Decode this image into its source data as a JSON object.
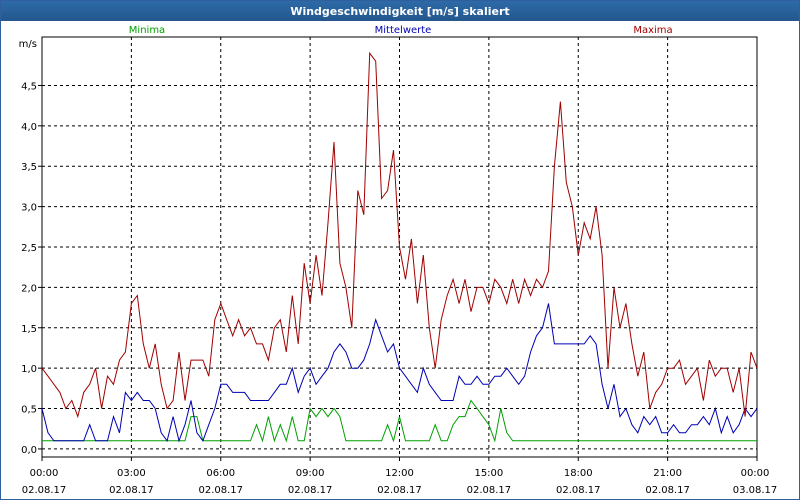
{
  "window": {
    "title": "Windgeschwindigkeit [m/s] skaliert"
  },
  "chart_data": {
    "type": "line",
    "title": "Windgeschwindigkeit [m/s] skaliert",
    "ylabel": "m/s",
    "ylim": [
      -0.1,
      5.1
    ],
    "xlim": [
      0,
      24
    ],
    "grid": true,
    "legend_placement": "top",
    "yticks": [
      "0,0",
      "0,5",
      "1,0",
      "1,5",
      "2,0",
      "2,5",
      "3,0",
      "3,5",
      "4,0",
      "4,5"
    ],
    "xticks": [
      {
        "time": "00:00",
        "date": "02.08.17"
      },
      {
        "time": "03:00",
        "date": "02.08.17"
      },
      {
        "time": "06:00",
        "date": "02.08.17"
      },
      {
        "time": "09:00",
        "date": "02.08.17"
      },
      {
        "time": "12:00",
        "date": "02.08.17"
      },
      {
        "time": "15:00",
        "date": "02.08.17"
      },
      {
        "time": "18:00",
        "date": "02.08.17"
      },
      {
        "time": "21:00",
        "date": "02.08.17"
      },
      {
        "time": "00:00",
        "date": "03.08.17"
      }
    ],
    "x": [
      0,
      0.2,
      0.4,
      0.6,
      0.8,
      1.0,
      1.2,
      1.4,
      1.6,
      1.8,
      2.0,
      2.2,
      2.4,
      2.6,
      2.8,
      3.0,
      3.2,
      3.4,
      3.6,
      3.8,
      4.0,
      4.2,
      4.4,
      4.6,
      4.8,
      5.0,
      5.2,
      5.4,
      5.6,
      5.8,
      6.0,
      6.2,
      6.4,
      6.6,
      6.8,
      7.0,
      7.2,
      7.4,
      7.6,
      7.8,
      8.0,
      8.2,
      8.4,
      8.6,
      8.8,
      9.0,
      9.2,
      9.4,
      9.6,
      9.8,
      10.0,
      10.2,
      10.4,
      10.6,
      10.8,
      11.0,
      11.2,
      11.4,
      11.6,
      11.8,
      12.0,
      12.2,
      12.4,
      12.6,
      12.8,
      13.0,
      13.2,
      13.4,
      13.6,
      13.8,
      14.0,
      14.2,
      14.4,
      14.6,
      14.8,
      15.0,
      15.2,
      15.4,
      15.6,
      15.8,
      16.0,
      16.2,
      16.4,
      16.6,
      16.8,
      17.0,
      17.2,
      17.4,
      17.6,
      17.8,
      18.0,
      18.2,
      18.4,
      18.6,
      18.8,
      19.0,
      19.2,
      19.4,
      19.6,
      19.8,
      20.0,
      20.2,
      20.4,
      20.6,
      20.8,
      21.0,
      21.2,
      21.4,
      21.6,
      21.8,
      22.0,
      22.2,
      22.4,
      22.6,
      22.8,
      23.0,
      23.2,
      23.4,
      23.6,
      23.8,
      24.0
    ],
    "series": [
      {
        "name": "Minima",
        "color": "#00a000",
        "values": [
          0.1,
          0.1,
          0.1,
          0.1,
          0.1,
          0.1,
          0.1,
          0.1,
          0.1,
          0.1,
          0.1,
          0.1,
          0.1,
          0.1,
          0.1,
          0.1,
          0.1,
          0.1,
          0.1,
          0.1,
          0.1,
          0.1,
          0.1,
          0.1,
          0.1,
          0.4,
          0.4,
          0.1,
          0.1,
          0.1,
          0.1,
          0.1,
          0.1,
          0.1,
          0.1,
          0.1,
          0.3,
          0.1,
          0.4,
          0.1,
          0.3,
          0.1,
          0.4,
          0.1,
          0.1,
          0.5,
          0.4,
          0.5,
          0.4,
          0.5,
          0.4,
          0.1,
          0.1,
          0.1,
          0.1,
          0.1,
          0.1,
          0.1,
          0.3,
          0.1,
          0.4,
          0.1,
          0.1,
          0.1,
          0.1,
          0.1,
          0.3,
          0.1,
          0.1,
          0.3,
          0.4,
          0.4,
          0.6,
          0.5,
          0.4,
          0.3,
          0.1,
          0.5,
          0.2,
          0.1,
          0.1,
          0.1,
          0.1,
          0.1,
          0.1,
          0.1,
          0.1,
          0.1,
          0.1,
          0.1,
          0.1,
          0.1,
          0.1,
          0.1,
          0.1,
          0.1,
          0.1,
          0.1,
          0.1,
          0.1,
          0.1,
          0.1,
          0.1,
          0.1,
          0.1,
          0.1,
          0.1,
          0.1,
          0.1,
          0.1,
          0.1,
          0.1,
          0.1,
          0.1,
          0.1,
          0.1,
          0.1,
          0.1,
          0.1,
          0.1,
          0.1
        ]
      },
      {
        "name": "Mittelwerte",
        "color": "#0000b4",
        "values": [
          0.5,
          0.2,
          0.1,
          0.1,
          0.1,
          0.1,
          0.1,
          0.1,
          0.3,
          0.1,
          0.1,
          0.1,
          0.4,
          0.2,
          0.7,
          0.6,
          0.7,
          0.6,
          0.6,
          0.5,
          0.2,
          0.1,
          0.4,
          0.1,
          0.3,
          0.6,
          0.2,
          0.1,
          0.3,
          0.5,
          0.8,
          0.8,
          0.7,
          0.7,
          0.7,
          0.6,
          0.6,
          0.6,
          0.6,
          0.7,
          0.8,
          0.8,
          1.0,
          0.7,
          0.9,
          1.0,
          0.8,
          0.9,
          1.0,
          1.2,
          1.3,
          1.2,
          1.0,
          1.0,
          1.1,
          1.3,
          1.6,
          1.4,
          1.2,
          1.3,
          1.0,
          0.9,
          0.8,
          0.7,
          1.0,
          0.8,
          0.7,
          0.6,
          0.6,
          0.6,
          0.9,
          0.8,
          0.8,
          0.9,
          0.8,
          0.8,
          0.9,
          0.9,
          1.0,
          0.9,
          0.8,
          0.9,
          1.2,
          1.4,
          1.5,
          1.8,
          1.3,
          1.3,
          1.3,
          1.3,
          1.3,
          1.3,
          1.4,
          1.3,
          0.8,
          0.5,
          0.8,
          0.4,
          0.5,
          0.3,
          0.2,
          0.4,
          0.3,
          0.4,
          0.2,
          0.2,
          0.3,
          0.2,
          0.2,
          0.3,
          0.3,
          0.4,
          0.3,
          0.5,
          0.2,
          0.4,
          0.2,
          0.3,
          0.5,
          0.4,
          0.5
        ]
      },
      {
        "name": "Maxima",
        "color": "#a00000",
        "values": [
          1.0,
          0.9,
          0.8,
          0.7,
          0.5,
          0.6,
          0.4,
          0.7,
          0.8,
          1.0,
          0.5,
          0.9,
          0.8,
          1.1,
          1.2,
          1.8,
          1.9,
          1.3,
          1.0,
          1.3,
          0.8,
          0.5,
          0.6,
          1.2,
          0.6,
          1.1,
          1.1,
          1.1,
          0.9,
          1.6,
          1.8,
          1.6,
          1.4,
          1.6,
          1.4,
          1.5,
          1.3,
          1.3,
          1.1,
          1.5,
          1.6,
          1.2,
          1.9,
          1.3,
          2.3,
          1.8,
          2.4,
          1.9,
          2.8,
          3.8,
          2.3,
          2.0,
          1.5,
          3.2,
          2.9,
          4.9,
          4.8,
          3.1,
          3.2,
          3.7,
          2.5,
          2.1,
          2.6,
          1.8,
          2.4,
          1.5,
          1.0,
          1.6,
          1.9,
          2.1,
          1.8,
          2.1,
          1.7,
          2.0,
          2.0,
          1.8,
          2.1,
          2.0,
          1.8,
          2.1,
          1.8,
          2.1,
          1.9,
          2.1,
          2.0,
          2.2,
          3.5,
          4.3,
          3.3,
          3.0,
          2.4,
          2.8,
          2.6,
          3.0,
          2.4,
          1.0,
          2.0,
          1.5,
          1.8,
          1.3,
          0.9,
          1.2,
          0.5,
          0.7,
          0.8,
          1.0,
          1.0,
          1.1,
          0.8,
          0.9,
          1.0,
          0.6,
          1.1,
          0.9,
          1.0,
          1.0,
          0.7,
          1.0,
          0.4,
          1.2,
          1.0
        ]
      }
    ]
  }
}
